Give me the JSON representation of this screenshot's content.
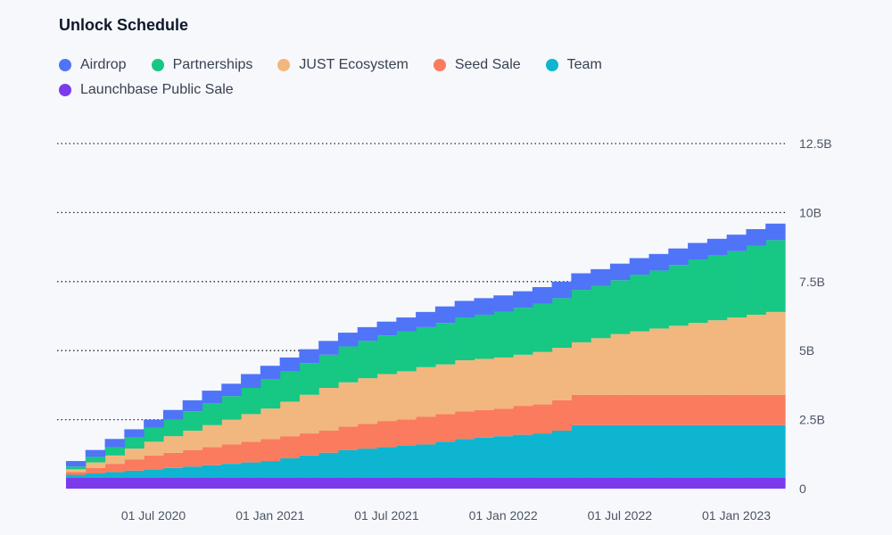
{
  "page": {
    "background": "#f7f8fc"
  },
  "chart_data": {
    "type": "area",
    "title": "Unlock Schedule",
    "xlabel": "",
    "ylabel": "",
    "ylim": [
      0,
      12.5
    ],
    "y_ticks": [
      "0",
      "2.5B",
      "5B",
      "7.5B",
      "10B",
      "12.5B"
    ],
    "y_tick_values": [
      0,
      2.5,
      5,
      7.5,
      10,
      12.5
    ],
    "x_ticks": [
      "01 Jul 2020",
      "01 Jan 2021",
      "01 Jul 2021",
      "01 Jan 2022",
      "01 Jul 2022",
      "01 Jan 2023"
    ],
    "x_tick_index": [
      4,
      10,
      16,
      22,
      28,
      34
    ],
    "grid": true,
    "stepped": true,
    "series": [
      {
        "name": "Launchbase Public Sale",
        "color": "#7c3aed",
        "values": [
          0.4,
          0.4,
          0.4,
          0.4,
          0.4,
          0.4,
          0.4,
          0.4,
          0.4,
          0.4,
          0.4,
          0.4,
          0.4,
          0.4,
          0.4,
          0.4,
          0.4,
          0.4,
          0.4,
          0.4,
          0.4,
          0.4,
          0.4,
          0.4,
          0.4,
          0.4,
          0.4,
          0.4,
          0.4,
          0.4,
          0.4,
          0.4,
          0.4,
          0.4,
          0.4,
          0.4,
          0.4
        ]
      },
      {
        "name": "Team",
        "color": "#0eb5d1",
        "values": [
          0.1,
          0.15,
          0.2,
          0.25,
          0.3,
          0.35,
          0.4,
          0.45,
          0.5,
          0.55,
          0.6,
          0.7,
          0.8,
          0.9,
          1.0,
          1.05,
          1.1,
          1.15,
          1.2,
          1.3,
          1.4,
          1.45,
          1.5,
          1.55,
          1.6,
          1.7,
          1.9,
          1.9,
          1.9,
          1.9,
          1.9,
          1.9,
          1.9,
          1.9,
          1.9,
          1.9,
          1.9
        ]
      },
      {
        "name": "Seed Sale",
        "color": "#fb7b5e",
        "values": [
          0.1,
          0.2,
          0.3,
          0.4,
          0.5,
          0.55,
          0.6,
          0.65,
          0.7,
          0.75,
          0.8,
          0.8,
          0.8,
          0.8,
          0.85,
          0.9,
          0.95,
          0.95,
          1.0,
          1.0,
          1.0,
          1.0,
          1.0,
          1.05,
          1.05,
          1.1,
          1.1,
          1.1,
          1.1,
          1.1,
          1.1,
          1.1,
          1.1,
          1.1,
          1.1,
          1.1,
          1.1
        ]
      },
      {
        "name": "JUST Ecosystem",
        "color": "#f2b77e",
        "values": [
          0.1,
          0.2,
          0.3,
          0.4,
          0.5,
          0.6,
          0.7,
          0.8,
          0.9,
          1.0,
          1.1,
          1.25,
          1.4,
          1.55,
          1.6,
          1.65,
          1.7,
          1.75,
          1.8,
          1.8,
          1.85,
          1.85,
          1.85,
          1.85,
          1.9,
          1.9,
          1.9,
          2.05,
          2.2,
          2.3,
          2.4,
          2.5,
          2.6,
          2.7,
          2.8,
          2.9,
          3.0
        ]
      },
      {
        "name": "Partnerships",
        "color": "#17c784",
        "values": [
          0.1,
          0.2,
          0.3,
          0.4,
          0.5,
          0.6,
          0.7,
          0.8,
          0.85,
          0.95,
          1.05,
          1.1,
          1.15,
          1.2,
          1.3,
          1.35,
          1.4,
          1.45,
          1.45,
          1.5,
          1.55,
          1.6,
          1.65,
          1.7,
          1.75,
          1.8,
          1.9,
          1.9,
          1.95,
          2.05,
          2.1,
          2.2,
          2.3,
          2.35,
          2.4,
          2.5,
          2.6
        ]
      },
      {
        "name": "Airdrop",
        "color": "#4f74f7",
        "values": [
          0.2,
          0.25,
          0.3,
          0.3,
          0.3,
          0.35,
          0.4,
          0.45,
          0.45,
          0.5,
          0.5,
          0.5,
          0.5,
          0.5,
          0.5,
          0.5,
          0.5,
          0.5,
          0.55,
          0.6,
          0.6,
          0.6,
          0.6,
          0.6,
          0.6,
          0.6,
          0.6,
          0.6,
          0.6,
          0.6,
          0.6,
          0.6,
          0.6,
          0.6,
          0.6,
          0.6,
          0.6
        ]
      }
    ]
  }
}
